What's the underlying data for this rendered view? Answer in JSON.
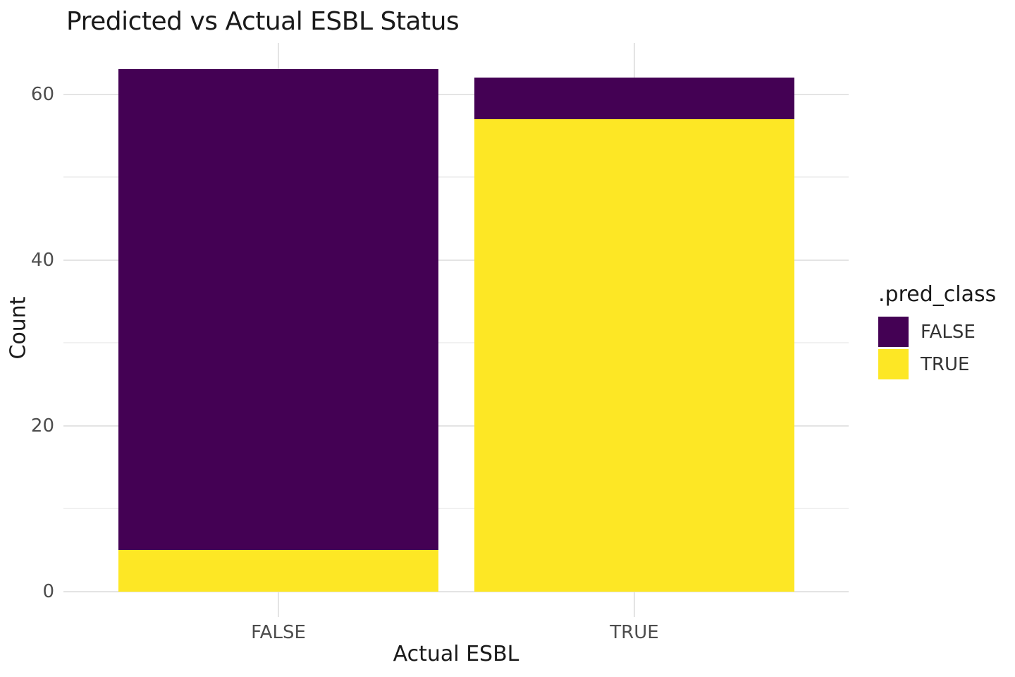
{
  "chart_data": {
    "type": "bar",
    "stacked": true,
    "title": "Predicted vs Actual ESBL Status",
    "xlabel": "Actual ESBL",
    "ylabel": "Count",
    "categories": [
      "FALSE",
      "TRUE"
    ],
    "series": [
      {
        "name": "FALSE",
        "color": "#440154",
        "values": [
          58,
          5
        ]
      },
      {
        "name": "TRUE",
        "color": "#FDE725",
        "values": [
          5,
          57
        ]
      }
    ],
    "stacking_order": "last series at bottom (TRUE bottom, FALSE on top)",
    "totals": [
      63,
      62
    ],
    "y_ticks": [
      0,
      20,
      40,
      60
    ],
    "y_minor_gridlines": [
      10,
      30,
      50
    ],
    "ylim": [
      0,
      66.4
    ],
    "grid": true,
    "legend_position": "right",
    "legend_title": ".pred_class",
    "legend": [
      {
        "label": "FALSE",
        "color": "#440154"
      },
      {
        "label": "TRUE",
        "color": "#FDE725"
      }
    ],
    "colors": {
      "background": "#ffffff",
      "grid_major": "#e4e4e4",
      "grid_minor": "#f1f1f1",
      "tick_label": "#4d4d4d",
      "text": "#1a1a1a"
    }
  }
}
